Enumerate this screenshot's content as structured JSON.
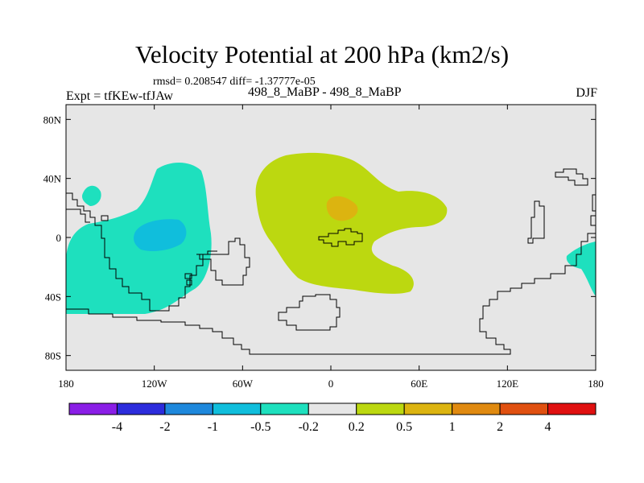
{
  "title": "Velocity Potential at 200 hPa (km2/s)",
  "stats": "rmsd= 0.208547 diff= -1.37777e-05",
  "experiment": "Expt = tfKEw-tfJAw",
  "case": "498_8_MaBP - 498_8_MaBP",
  "season": "DJF",
  "map": {
    "background_color": "#e6e6e6",
    "lon_range": [
      -180,
      180
    ],
    "lat_range": [
      -90,
      90
    ],
    "lat_ticks": [
      {
        "value": 80,
        "label": "80N"
      },
      {
        "value": 40,
        "label": "40N"
      },
      {
        "value": 0,
        "label": "0"
      },
      {
        "value": -40,
        "label": "40S"
      },
      {
        "value": -80,
        "label": "80S"
      }
    ],
    "lon_ticks": [
      {
        "value": -180,
        "label": "180"
      },
      {
        "value": -120,
        "label": "120W"
      },
      {
        "value": -60,
        "label": "60W"
      },
      {
        "value": 0,
        "label": "0"
      },
      {
        "value": 60,
        "label": "60E"
      },
      {
        "value": 120,
        "label": "120E"
      },
      {
        "value": 180,
        "label": "180"
      }
    ]
  },
  "colorbar": {
    "colors": [
      "#8a1ee6",
      "#2c2cdc",
      "#1e88dc",
      "#10bedc",
      "#1ee0be",
      "#e6e6e6",
      "#bcd810",
      "#dcb410",
      "#e08a10",
      "#e05010",
      "#e01010"
    ],
    "labels": [
      "-4",
      "-2",
      "-1",
      "-0.5",
      "-0.2",
      "0.2",
      "0.5",
      "1",
      "2",
      "4"
    ]
  }
}
